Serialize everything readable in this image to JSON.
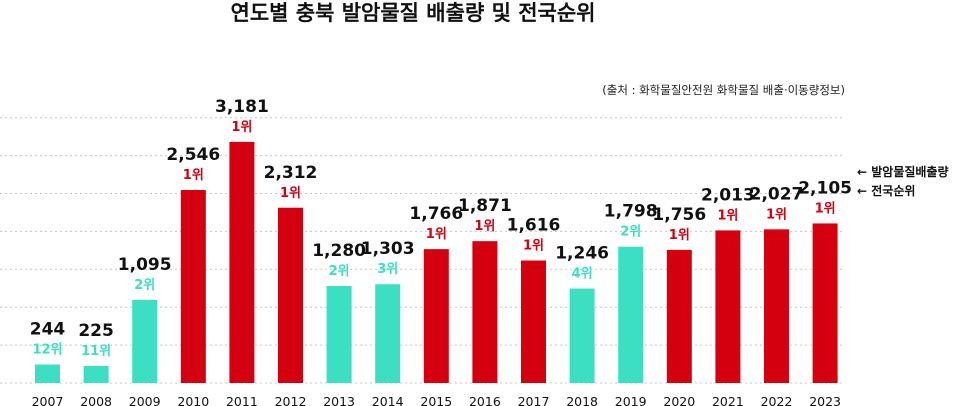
{
  "title": "연도별 충북 발암물질 배출량 및 전국순위",
  "source": "(출처 : 화학물질안전원 화학물질 배출·이동량정보)",
  "legend": {
    "emission": "← 발암물질배출량",
    "rank": "← 전국순위"
  },
  "colors": {
    "rank_one": "#d4000f",
    "other_rank": "#3cdfc2",
    "grid": "#c8c8c8"
  },
  "chart_data": {
    "type": "bar",
    "categories": [
      "2007",
      "2008",
      "2009",
      "2010",
      "2011",
      "2012",
      "2013",
      "2014",
      "2015",
      "2016",
      "2017",
      "2018",
      "2019",
      "2020",
      "2021",
      "2022",
      "2023"
    ],
    "values": [
      244,
      225,
      1095,
      2546,
      3181,
      2312,
      1280,
      1303,
      1766,
      1871,
      1616,
      1246,
      1798,
      1756,
      2013,
      2027,
      2105
    ],
    "value_labels": [
      "244",
      "225",
      "1,095",
      "2,546",
      "3,181",
      "2,312",
      "1,280",
      "1,303",
      "1,766",
      "1,871",
      "1,616",
      "1,246",
      "1,798",
      "1,756",
      "2,013",
      "2,027",
      "2,105"
    ],
    "ranks": [
      "12위",
      "11위",
      "2위",
      "1위",
      "1위",
      "1위",
      "2위",
      "3위",
      "1위",
      "1위",
      "1위",
      "4위",
      "2위",
      "1위",
      "1위",
      "1위",
      "1위"
    ],
    "ylim": [
      0,
      3400
    ],
    "gridlines": [
      0,
      500,
      1000,
      1500,
      2000,
      2500,
      3000,
      3500
    ],
    "xlabel": "",
    "ylabel": ""
  }
}
